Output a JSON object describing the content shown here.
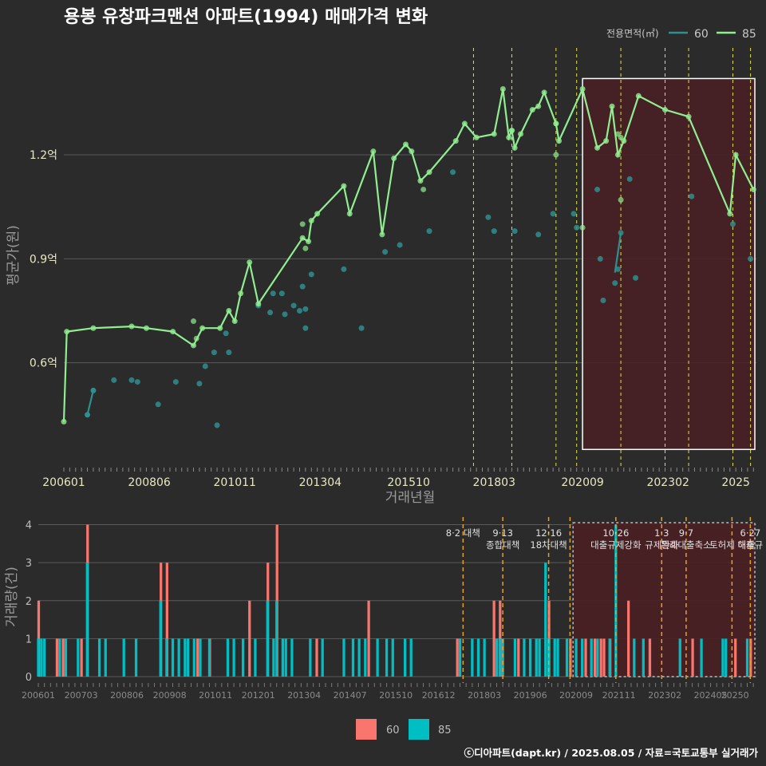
{
  "title": "용봉 유창파크맨션 아파트(1994) 매매가격 변화",
  "footer": "ⓒ디아파트(dapt.kr) / 2025.08.05 / 자료=국토교통부 실거래가",
  "colors": {
    "bg": "#2b2b2b",
    "grid": "#5a5a5a",
    "s60_line": "#2f8f8f",
    "s85_line": "#90ee90",
    "bar60": "#f8766d",
    "bar85": "#00bfc4",
    "policy_top": "#e3e33a",
    "policy_bottom": "#e8a020",
    "highlight_fill": "#4a1f24",
    "tick_text": "#e8e8c0"
  },
  "chart_data": [
    {
      "type": "line",
      "title": "용봉 유창파크맨션 아파트(1994) 매매가격 변화",
      "xlabel": "거래년월",
      "ylabel": "평균가(원)",
      "x_ticks": [
        "200601",
        "200806",
        "201011",
        "201304",
        "201510",
        "201803",
        "202009",
        "202302",
        "2025"
      ],
      "y_ticks": [
        {
          "value": 0.6,
          "label": "0.6억"
        },
        {
          "value": 0.9,
          "label": "0.9억"
        },
        {
          "value": 1.2,
          "label": "1.2억"
        }
      ],
      "xlim": [
        "2006-01",
        "2025-08"
      ],
      "ylim": [
        0.3,
        1.52
      ],
      "legend": {
        "title": "전용면적(㎡)",
        "placement": "top-right"
      },
      "highlight": {
        "x_start": "2020-09",
        "x_end": "2025-08",
        "y_min": 0.35,
        "y_max": 1.42
      },
      "policy_lines": [
        "2017-08",
        "2018-09",
        "2019-12",
        "2020-07",
        "2021-10",
        "2023-01",
        "2023-09",
        "2024-12",
        "2025-06"
      ],
      "series": [
        {
          "name": "60",
          "line": [
            [
              "2006-09",
              0.45
            ],
            [
              "2006-11",
              0.52
            ]
          ],
          "points": [
            [
              "2007-06",
              0.55
            ],
            [
              "2007-12",
              0.55
            ],
            [
              "2008-02",
              0.545
            ],
            [
              "2008-09",
              0.48
            ],
            [
              "2009-03",
              0.545
            ],
            [
              "2009-11",
              0.54
            ],
            [
              "2010-01",
              0.59
            ],
            [
              "2010-04",
              0.63
            ],
            [
              "2010-05",
              0.42
            ],
            [
              "2010-08",
              0.685
            ],
            [
              "2010-09",
              0.63
            ],
            [
              "2011-07",
              0.765
            ],
            [
              "2011-12",
              0.8
            ],
            [
              "2011-11",
              0.745
            ],
            [
              "2012-03",
              0.8
            ],
            [
              "2012-04",
              0.74
            ],
            [
              "2012-07",
              0.765
            ],
            [
              "2012-09",
              0.75
            ],
            [
              "2012-10",
              0.82
            ],
            [
              "2012-11",
              0.755
            ],
            [
              "2012-11",
              0.7
            ],
            [
              "2013-01",
              0.855
            ],
            [
              "2013-12",
              0.87
            ],
            [
              "2014-06",
              0.7
            ],
            [
              "2015-02",
              0.92
            ],
            [
              "2015-07",
              0.94
            ],
            [
              "2016-05",
              0.98
            ],
            [
              "2017-01",
              1.15
            ],
            [
              "2018-01",
              1.02
            ],
            [
              "2018-03",
              0.98
            ],
            [
              "2018-10",
              0.98
            ],
            [
              "2019-06",
              0.97
            ],
            [
              "2019-11",
              1.03
            ],
            [
              "2020-06",
              1.03
            ],
            [
              "2020-07",
              0.99
            ],
            [
              "2021-02",
              1.1
            ],
            [
              "2021-03",
              0.9
            ],
            [
              "2021-04",
              0.78
            ],
            [
              "2021-08",
              0.83
            ],
            [
              "2021-09",
              0.87
            ],
            [
              "2021-10",
              0.975
            ],
            [
              "2022-01",
              1.13
            ],
            [
              "2022-03",
              0.845
            ],
            [
              "2023-10",
              1.08
            ],
            [
              "2024-12",
              1.0
            ],
            [
              "2025-06",
              0.9
            ]
          ],
          "connect": [
            [
              "2021-08",
              0.86
            ],
            [
              "2021-10",
              0.975
            ]
          ]
        },
        {
          "name": "85",
          "line": [
            [
              "2006-01",
              0.43
            ],
            [
              "2006-02",
              0.69
            ],
            [
              "2006-11",
              0.7
            ],
            [
              "2007-12",
              0.705
            ],
            [
              "2008-05",
              0.7
            ],
            [
              "2009-02",
              0.69
            ],
            [
              "2009-09",
              0.65
            ],
            [
              "2009-12",
              0.7
            ],
            [
              "2010-06",
              0.7
            ],
            [
              "2010-09",
              0.75
            ],
            [
              "2010-11",
              0.72
            ],
            [
              "2011-01",
              0.8
            ],
            [
              "2011-04",
              0.89
            ],
            [
              "2011-07",
              0.77
            ],
            [
              "2012-10",
              0.96
            ],
            [
              "2012-12",
              0.95
            ],
            [
              "2013-01",
              1.01
            ],
            [
              "2013-03",
              1.03
            ],
            [
              "2013-12",
              1.11
            ],
            [
              "2014-02",
              1.03
            ],
            [
              "2014-10",
              1.21
            ],
            [
              "2015-01",
              0.97
            ],
            [
              "2015-05",
              1.19
            ],
            [
              "2015-09",
              1.23
            ],
            [
              "2015-11",
              1.21
            ],
            [
              "2016-02",
              1.125
            ],
            [
              "2016-05",
              1.15
            ],
            [
              "2017-02",
              1.24
            ],
            [
              "2017-05",
              1.29
            ],
            [
              "2017-09",
              1.25
            ],
            [
              "2018-03",
              1.26
            ],
            [
              "2018-06",
              1.39
            ],
            [
              "2018-08",
              1.25
            ],
            [
              "2018-09",
              1.27
            ],
            [
              "2018-10",
              1.22
            ],
            [
              "2018-12",
              1.26
            ],
            [
              "2019-04",
              1.33
            ],
            [
              "2019-06",
              1.34
            ],
            [
              "2019-08",
              1.38
            ],
            [
              "2019-12",
              1.29
            ],
            [
              "2020-01",
              1.24
            ],
            [
              "2020-09",
              1.39
            ],
            [
              "2021-02",
              1.22
            ],
            [
              "2021-05",
              1.24
            ],
            [
              "2021-07",
              1.34
            ],
            [
              "2021-09",
              1.2
            ],
            [
              "2021-11",
              1.24
            ],
            [
              "2022-04",
              1.37
            ],
            [
              "2023-01",
              1.33
            ],
            [
              "2023-09",
              1.31
            ],
            [
              "2024-11",
              1.03
            ],
            [
              "2025-01",
              1.2
            ],
            [
              "2025-07",
              1.1
            ]
          ],
          "points": [
            [
              "2012-10",
              1.0
            ],
            [
              "2012-11",
              0.93
            ],
            [
              "2016-03",
              1.1
            ],
            [
              "2009-09",
              0.72
            ],
            [
              "2009-10",
              0.67
            ],
            [
              "2019-12",
              1.29
            ],
            [
              "2019-12",
              1.2
            ],
            [
              "2018-09",
              1.27
            ],
            [
              "2020-09",
              0.99
            ],
            [
              "2021-09",
              1.26
            ],
            [
              "2021-10",
              1.07
            ],
            [
              "2021-10",
              1.25
            ]
          ]
        }
      ]
    },
    {
      "type": "bar",
      "ylabel": "거래량(건)",
      "x_ticks": [
        "200601",
        "200703",
        "200806",
        "200908",
        "201011",
        "201201",
        "201304",
        "201407",
        "201510",
        "201612",
        "201803",
        "201906",
        "202009",
        "202111",
        "202302",
        "202405",
        "20250"
      ],
      "y_ticks": [
        0,
        1,
        2,
        3,
        4
      ],
      "ylim": [
        0,
        4.2
      ],
      "legend": {
        "placement": "bottom",
        "items": [
          "60",
          "85"
        ]
      },
      "highlight": {
        "x_start": "2020-08",
        "x_end": "2025-08"
      },
      "policy_labels": [
        {
          "date": "2017-08",
          "lines": [
            "8·2 대책"
          ]
        },
        {
          "date": "2018-09",
          "lines": [
            "9·13",
            "종합대책"
          ]
        },
        {
          "date": "2019-12",
          "lines": [
            "12·16",
            "18차대책"
          ]
        },
        {
          "date": "2020-07",
          "lines": []
        },
        {
          "date": "2021-10",
          "lines": [
            "10·26",
            "대출규제강화"
          ]
        },
        {
          "date": "2023-01",
          "lines": [
            "1·3",
            "규제완화"
          ]
        },
        {
          "date": "2023-09",
          "lines": [
            "9·7",
            "특례대출축소"
          ]
        },
        {
          "date": "2024-12",
          "lines": [
            "",
            "토허제 해제"
          ]
        },
        {
          "date": "2025-06",
          "lines": [
            "6·27",
            "대출규"
          ]
        }
      ],
      "bars85": [
        [
          "2006-01",
          1
        ],
        [
          "2006-02",
          1
        ],
        [
          "2006-03",
          1
        ],
        [
          "2006-08",
          1
        ],
        [
          "2006-10",
          1
        ],
        [
          "2007-02",
          1
        ],
        [
          "2007-05",
          3
        ],
        [
          "2007-09",
          1
        ],
        [
          "2007-11",
          1
        ],
        [
          "2008-05",
          1
        ],
        [
          "2008-09",
          1
        ],
        [
          "2009-05",
          2
        ],
        [
          "2009-07",
          1
        ],
        [
          "2009-09",
          1
        ],
        [
          "2009-11",
          1
        ],
        [
          "2010-01",
          1
        ],
        [
          "2010-02",
          1
        ],
        [
          "2010-04",
          1
        ],
        [
          "2010-06",
          1
        ],
        [
          "2010-09",
          1
        ],
        [
          "2011-03",
          1
        ],
        [
          "2011-05",
          1
        ],
        [
          "2011-08",
          1
        ],
        [
          "2011-12",
          1
        ],
        [
          "2012-04",
          2
        ],
        [
          "2012-06",
          1
        ],
        [
          "2012-07",
          2
        ],
        [
          "2012-09",
          1
        ],
        [
          "2012-10",
          1
        ],
        [
          "2012-12",
          1
        ],
        [
          "2013-06",
          1
        ],
        [
          "2013-10",
          1
        ],
        [
          "2014-05",
          1
        ],
        [
          "2014-08",
          1
        ],
        [
          "2014-10",
          1
        ],
        [
          "2014-12",
          1
        ],
        [
          "2015-04",
          1
        ],
        [
          "2015-07",
          1
        ],
        [
          "2015-09",
          1
        ],
        [
          "2016-01",
          1
        ],
        [
          "2016-03",
          1
        ],
        [
          "2017-07",
          1
        ],
        [
          "2017-11",
          1
        ],
        [
          "2018-01",
          1
        ],
        [
          "2018-03",
          1
        ],
        [
          "2018-07",
          1
        ],
        [
          "2018-08",
          1
        ],
        [
          "2018-09",
          1
        ],
        [
          "2019-01",
          1
        ],
        [
          "2019-04",
          1
        ],
        [
          "2019-06",
          1
        ],
        [
          "2019-08",
          1
        ],
        [
          "2019-09",
          1
        ],
        [
          "2019-11",
          3
        ],
        [
          "2019-12",
          1
        ],
        [
          "2020-02",
          1
        ],
        [
          "2020-03",
          1
        ],
        [
          "2020-06",
          1
        ],
        [
          "2020-09",
          1
        ],
        [
          "2020-11",
          1
        ],
        [
          "2021-02",
          1
        ],
        [
          "2021-04",
          1
        ],
        [
          "2021-08",
          1
        ],
        [
          "2021-10",
          4
        ],
        [
          "2022-04",
          1
        ],
        [
          "2022-07",
          1
        ],
        [
          "2023-07",
          1
        ],
        [
          "2024-02",
          1
        ],
        [
          "2024-09",
          1
        ],
        [
          "2024-10",
          1
        ],
        [
          "2025-05",
          1
        ]
      ],
      "bars60": [
        [
          "2006-01",
          2
        ],
        [
          "2006-07",
          1
        ],
        [
          "2006-09",
          1
        ],
        [
          "2007-03",
          1
        ],
        [
          "2007-05",
          4
        ],
        [
          "2009-05",
          3
        ],
        [
          "2009-07",
          3
        ],
        [
          "2010-05",
          1
        ],
        [
          "2010-09",
          1
        ],
        [
          "2011-10",
          2
        ],
        [
          "2012-04",
          3
        ],
        [
          "2012-07",
          4
        ],
        [
          "2013-08",
          1
        ],
        [
          "2015-01",
          2
        ],
        [
          "2017-06",
          1
        ],
        [
          "2018-06",
          2
        ],
        [
          "2018-08",
          2
        ],
        [
          "2019-02",
          1
        ],
        [
          "2019-12",
          2
        ],
        [
          "2020-07",
          1
        ],
        [
          "2020-12",
          1
        ],
        [
          "2021-03",
          1
        ],
        [
          "2021-05",
          1
        ],
        [
          "2021-06",
          1
        ],
        [
          "2021-08",
          1
        ],
        [
          "2022-02",
          2
        ],
        [
          "2022-09",
          1
        ],
        [
          "2023-11",
          1
        ],
        [
          "2025-01",
          1
        ],
        [
          "2025-06",
          1
        ]
      ]
    }
  ]
}
